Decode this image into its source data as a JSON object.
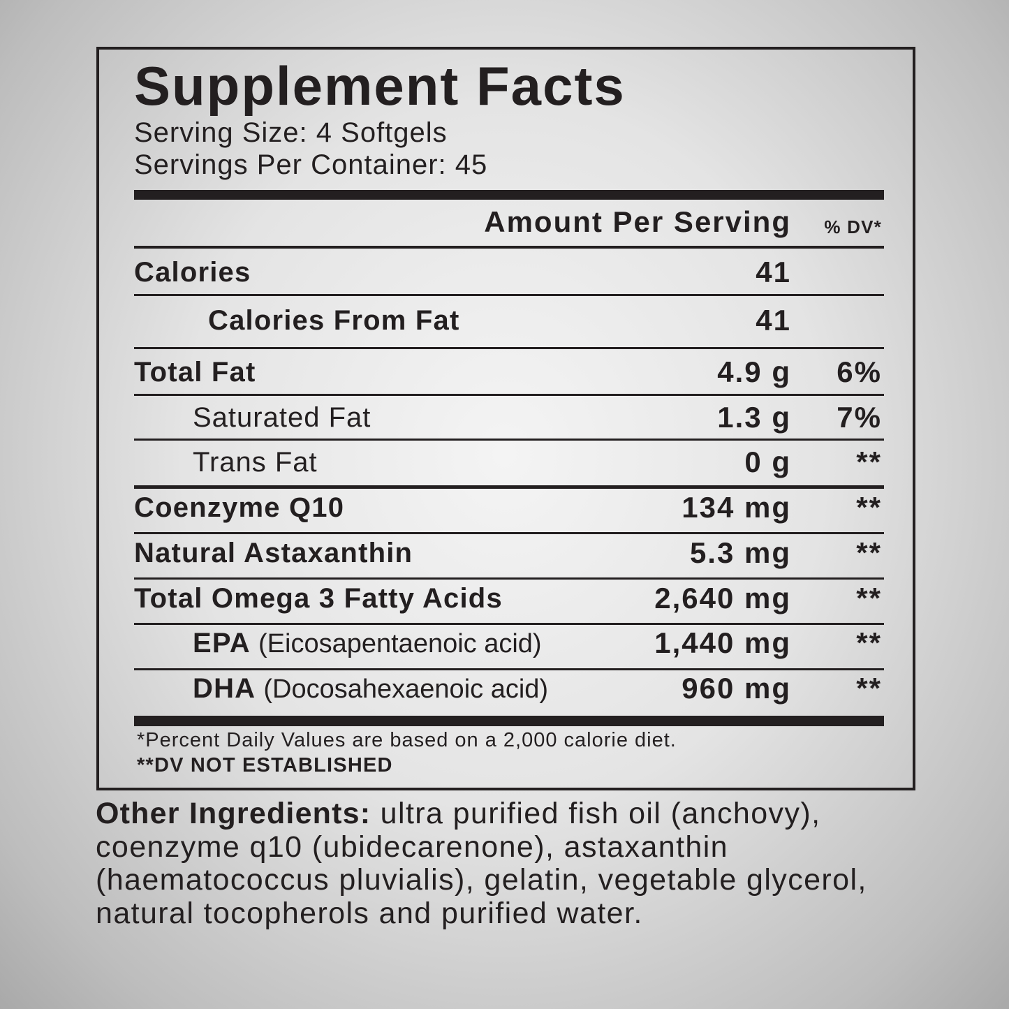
{
  "label": {
    "title": "Supplement Facts",
    "serving_size": "Serving Size: 4 Softgels",
    "servings_per_container": "Servings Per Container: 45",
    "amount_header": "Amount Per Serving",
    "dv_header": "% DV*",
    "rows": [
      {
        "name": "Calories",
        "amount": "41"
      },
      {
        "name": "Calories From Fat",
        "amount": "41"
      },
      {
        "name": "Total Fat",
        "amount": "4.9 g",
        "dv": "6%"
      },
      {
        "name": "Saturated Fat",
        "amount": "1.3 g",
        "dv": "7%"
      },
      {
        "name": "Trans Fat",
        "amount": "0 g",
        "dv": "**"
      },
      {
        "name": "Coenzyme Q10",
        "amount": "134 mg",
        "dv": "**"
      },
      {
        "name": "Natural Astaxanthin",
        "amount": "5.3 mg",
        "dv": "**"
      },
      {
        "name": "Total Omega 3 Fatty Acids",
        "amount": "2,640 mg",
        "dv": "**"
      },
      {
        "name": "EPA",
        "note": "(Eicosapentaenoic acid)",
        "amount": "1,440 mg",
        "dv": "**"
      },
      {
        "name": "DHA",
        "note": "(Docosahexaenoic acid)",
        "amount": "960 mg",
        "dv": "**"
      }
    ],
    "footnote": "*Percent Daily Values are based on a 2,000 calorie diet.",
    "footnote2": "**DV NOT ESTABLISHED"
  },
  "other_ingredients": {
    "label": "Other Ingredients:",
    "text": "ultra purified fish oil (anchovy), coenzyme q10 (ubidecarenone), astaxanthin (haematococcus pluvialis), gelatin, vegetable glycerol, natural tocopherols and purified water."
  }
}
